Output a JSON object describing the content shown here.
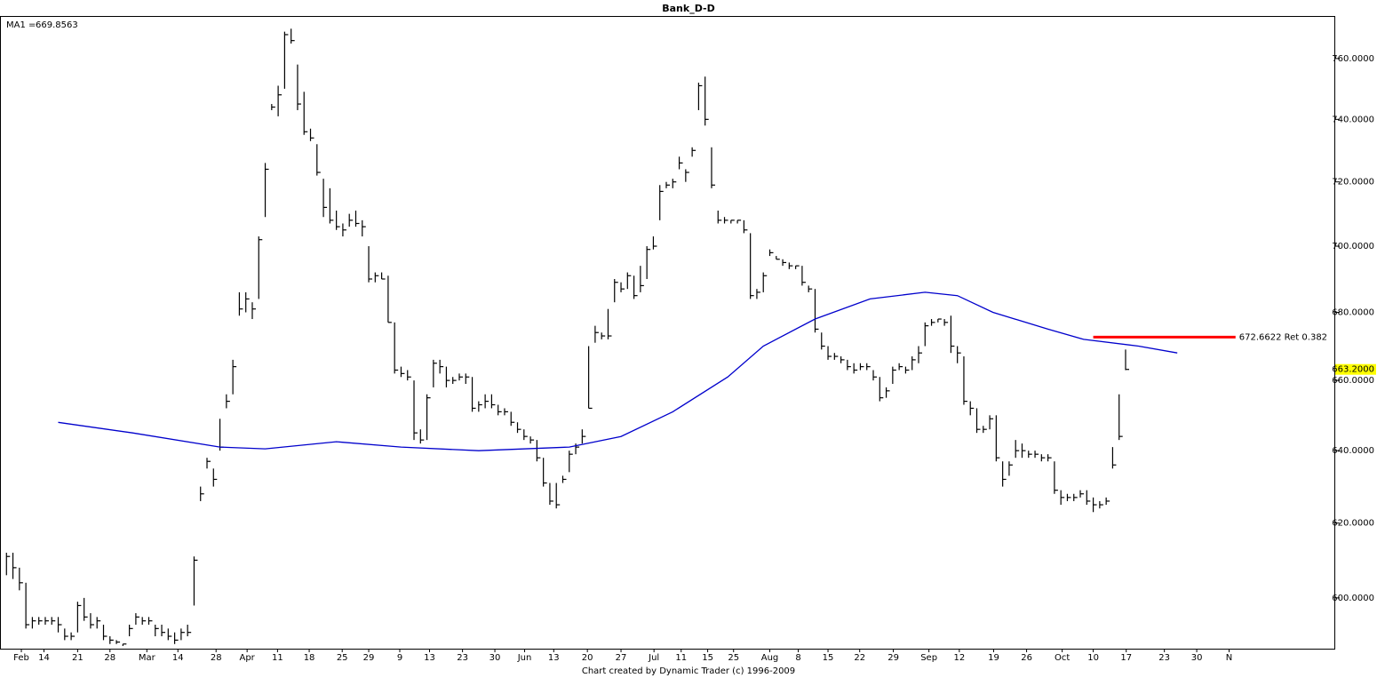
{
  "chart_data": {
    "type": "ohlc",
    "title": "Bank_D-D",
    "footer": "Chart created by Dynamic Trader  (c) 1996-2009",
    "log_scale": true,
    "bar_color": "#000000",
    "xlim": [
      -1,
      205
    ],
    "ylim": [
      586.8,
      774.3
    ],
    "yticks": [
      {
        "value": 600,
        "label": "600.0000"
      },
      {
        "value": 620,
        "label": "620.0000"
      },
      {
        "value": 640,
        "label": "640.0000"
      },
      {
        "value": 660,
        "label": "660.0000"
      },
      {
        "value": 680,
        "label": "680.0000"
      },
      {
        "value": 700,
        "label": "700.0000"
      },
      {
        "value": 720,
        "label": "720.0000"
      },
      {
        "value": 740,
        "label": "740.0000"
      },
      {
        "value": 760,
        "label": "760.0000"
      }
    ],
    "xticks": [
      {
        "value": 2.3,
        "label": "Feb"
      },
      {
        "value": 5.8,
        "label": "14"
      },
      {
        "value": 11,
        "label": "21"
      },
      {
        "value": 16,
        "label": "28"
      },
      {
        "value": 21.7,
        "label": "Mar"
      },
      {
        "value": 26.5,
        "label": "14"
      },
      {
        "value": 32.4,
        "label": "28"
      },
      {
        "value": 37.2,
        "label": "Apr"
      },
      {
        "value": 41.9,
        "label": "11"
      },
      {
        "value": 46.8,
        "label": "18"
      },
      {
        "value": 51.9,
        "label": "25"
      },
      {
        "value": 56,
        "label": "29"
      },
      {
        "value": 60.8,
        "label": "9"
      },
      {
        "value": 65.4,
        "label": "13"
      },
      {
        "value": 70.5,
        "label": "23"
      },
      {
        "value": 75.5,
        "label": "30"
      },
      {
        "value": 80.1,
        "label": "Jun"
      },
      {
        "value": 84.6,
        "label": "13"
      },
      {
        "value": 89.8,
        "label": "20"
      },
      {
        "value": 95,
        "label": "27"
      },
      {
        "value": 100.1,
        "label": "Jul"
      },
      {
        "value": 104.3,
        "label": "11"
      },
      {
        "value": 108.4,
        "label": "15"
      },
      {
        "value": 112.4,
        "label": "25"
      },
      {
        "value": 118,
        "label": "Aug"
      },
      {
        "value": 122.4,
        "label": "8"
      },
      {
        "value": 127,
        "label": "15"
      },
      {
        "value": 131.9,
        "label": "22"
      },
      {
        "value": 137.1,
        "label": "29"
      },
      {
        "value": 142.6,
        "label": "Sep"
      },
      {
        "value": 147.3,
        "label": "12"
      },
      {
        "value": 152.6,
        "label": "19"
      },
      {
        "value": 157.7,
        "label": "26"
      },
      {
        "value": 163.2,
        "label": "Oct"
      },
      {
        "value": 168,
        "label": "10"
      },
      {
        "value": 173.1,
        "label": "17"
      },
      {
        "value": 179,
        "label": "23"
      },
      {
        "value": 184,
        "label": "30"
      },
      {
        "value": 189,
        "label": "N"
      }
    ],
    "bars": {
      "x": [
        0,
        1,
        2,
        3,
        4,
        5,
        6,
        7,
        8,
        9,
        10,
        11,
        12,
        13,
        14,
        15,
        16,
        17,
        18,
        19,
        20,
        21,
        22,
        23,
        24,
        25,
        26,
        27,
        28,
        29,
        30,
        31,
        32,
        33,
        34,
        35,
        36,
        37,
        38,
        39,
        40,
        41,
        42,
        43,
        44,
        45,
        46,
        47,
        48,
        49,
        50,
        51,
        52,
        53,
        54,
        55,
        56,
        57,
        58,
        59,
        60,
        61,
        62,
        63,
        64,
        65,
        66,
        67,
        68,
        69,
        70,
        71,
        72,
        73,
        74,
        75,
        76,
        77,
        78,
        79,
        80,
        81,
        82,
        83,
        84,
        85,
        86,
        87,
        88,
        89,
        90,
        91,
        92,
        93,
        94,
        95,
        96,
        97,
        98,
        99,
        100,
        101,
        102,
        103,
        104,
        105,
        106,
        107,
        108,
        109,
        110,
        111,
        112,
        113,
        114,
        115,
        116,
        117,
        118,
        119,
        120,
        121,
        122,
        123,
        124,
        125,
        126,
        127,
        128,
        129,
        130,
        131,
        132,
        133,
        134,
        135,
        136,
        137,
        138,
        139,
        140,
        141,
        142,
        143,
        144,
        145,
        146,
        147,
        148,
        149,
        150,
        151,
        152,
        153,
        154,
        155,
        156,
        157,
        158,
        159,
        160,
        161,
        162,
        163,
        164,
        165,
        166,
        167,
        168,
        169,
        170,
        171,
        172,
        173
      ],
      "high": [
        612,
        612,
        608,
        604,
        595,
        595,
        595,
        595,
        595,
        592,
        591,
        599,
        600,
        596,
        595,
        593,
        590,
        589,
        588,
        593,
        596,
        595,
        595,
        593,
        593,
        592,
        591,
        592,
        593,
        611,
        630,
        638,
        635,
        649,
        656,
        666,
        686,
        686,
        683,
        703,
        726,
        745,
        751,
        769,
        770,
        758,
        749,
        737,
        732,
        721,
        718,
        711,
        707,
        710,
        711,
        708,
        700,
        692,
        692,
        691,
        677,
        664,
        663,
        660,
        646,
        656,
        666,
        666,
        664,
        661,
        662,
        662,
        661,
        654,
        656,
        656,
        653,
        652,
        651,
        648,
        646,
        644,
        643,
        638,
        631,
        631,
        633,
        640,
        642,
        646,
        670,
        676,
        674,
        681,
        690,
        689,
        692,
        691,
        694,
        700,
        703,
        719,
        720,
        721,
        728,
        724,
        731,
        752,
        754,
        731,
        711,
        709,
        708,
        708,
        708,
        704,
        687,
        692,
        699,
        697,
        696,
        695,
        694,
        694,
        688,
        687,
        674,
        670,
        668,
        667,
        666,
        665,
        665,
        665,
        663,
        661,
        658,
        664,
        665,
        664,
        667,
        670,
        677,
        678,
        678,
        678,
        679,
        670,
        667,
        654,
        652,
        647,
        650,
        650,
        637,
        637,
        643,
        642,
        640,
        640,
        639,
        639,
        637,
        629,
        628,
        628,
        629,
        629,
        627,
        626,
        627,
        641,
        656,
        669
      ],
      "low": [
        606,
        605,
        602,
        592,
        592,
        593,
        593,
        593,
        591,
        589,
        589,
        591,
        594,
        592,
        592,
        589,
        588,
        588,
        587.5,
        590,
        593,
        593,
        593,
        590,
        590,
        589,
        588,
        589,
        590,
        598,
        626,
        635,
        630,
        640,
        652,
        656,
        679,
        680,
        678,
        684,
        709,
        743,
        741,
        750,
        765,
        743,
        735,
        733,
        722,
        709,
        707,
        705,
        703,
        706,
        706,
        703,
        689,
        689,
        690,
        677,
        662,
        661,
        660,
        643,
        642,
        643,
        658,
        662,
        658,
        659,
        660,
        659,
        651,
        651,
        652,
        652,
        650,
        650,
        647,
        645,
        643,
        642,
        637,
        630,
        625,
        624,
        631,
        634,
        639,
        642,
        652,
        671,
        672,
        672,
        683,
        686,
        687,
        684,
        686,
        690,
        699,
        708,
        718,
        718,
        724,
        720,
        728,
        743,
        738,
        718,
        707,
        707,
        707,
        707,
        704,
        684,
        684,
        686,
        697,
        696,
        694,
        693,
        693,
        688,
        686,
        674,
        669,
        666,
        666,
        665,
        663,
        662,
        663,
        663,
        660,
        654,
        655,
        659,
        663,
        662,
        663,
        665,
        670,
        676,
        677,
        676,
        668,
        665,
        653,
        650,
        645,
        645,
        646,
        637,
        630,
        633,
        638,
        638,
        638,
        638,
        637,
        637,
        628,
        625,
        626,
        626,
        627,
        625,
        623,
        624,
        625,
        635,
        643,
        663
      ],
      "close": [
        611,
        608,
        604,
        593,
        594,
        594,
        594,
        594,
        593,
        590,
        590,
        598,
        595,
        593,
        594,
        590,
        589,
        588.5,
        588,
        592,
        595,
        594,
        594,
        592,
        591,
        590,
        589,
        591,
        591,
        610,
        628,
        637,
        632,
        641,
        654,
        664,
        681,
        684,
        681,
        702,
        724,
        744,
        748,
        768,
        766,
        745,
        736,
        734,
        723,
        712,
        708,
        706,
        705,
        708,
        707,
        706,
        690,
        691,
        690,
        677,
        663,
        662,
        661,
        645,
        643,
        655,
        665,
        664,
        660,
        660,
        661,
        661,
        652,
        653,
        654,
        653,
        651,
        651,
        648,
        646,
        644,
        643,
        638,
        631,
        626,
        625,
        632,
        639,
        641,
        644,
        652,
        674,
        673,
        673,
        689,
        687,
        691,
        685,
        688,
        699,
        700,
        717,
        719,
        720,
        726,
        723,
        730,
        751,
        740,
        719,
        708,
        708,
        708,
        708,
        705,
        685,
        686,
        691,
        698,
        696,
        695,
        694,
        694,
        689,
        687,
        675,
        670,
        667,
        667,
        666,
        664,
        663,
        664,
        664,
        661,
        655,
        657,
        663,
        664,
        663,
        666,
        668,
        676,
        677,
        678,
        677,
        670,
        668,
        654,
        652,
        646,
        646,
        649,
        638,
        632,
        636,
        640,
        640,
        639,
        639,
        638,
        638,
        629,
        627,
        627,
        627,
        628,
        626,
        625,
        625,
        626,
        636,
        644,
        663.2
      ]
    },
    "last_price_label": "663.2000",
    "last_price_color": "#ffff00",
    "ma": {
      "name": "MA1 =",
      "label": "669.8563",
      "color": "#0000cc",
      "x": [
        8,
        19.5,
        33,
        40,
        51,
        61,
        73,
        87,
        95,
        103,
        111.5,
        117,
        125,
        133.5,
        142,
        147,
        152.5,
        161,
        166.5,
        175,
        181
      ],
      "values": [
        648,
        645,
        641,
        640.5,
        642.5,
        641,
        640,
        641,
        644,
        651,
        661,
        670,
        678,
        684,
        686,
        685,
        680,
        675,
        672,
        670,
        668
      ]
    },
    "retracement": {
      "value": 672.6622,
      "label": "672.6622 Ret 0.382",
      "color": "#ff0000",
      "x": [
        168,
        190
      ]
    }
  }
}
